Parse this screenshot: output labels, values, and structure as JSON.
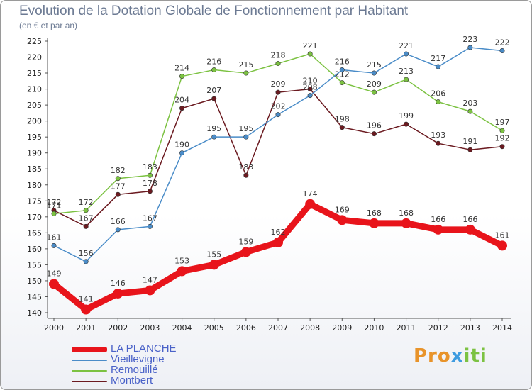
{
  "chart_data": {
    "type": "line",
    "title": "Evolution de la Dotation Globale de Fonctionnement par Habitant",
    "subtitle": "(en € et par an)",
    "x": [
      "2000",
      "2001",
      "2002",
      "2003",
      "2004",
      "2005",
      "2006",
      "2007",
      "2008",
      "2009",
      "2010",
      "2011",
      "2012",
      "2013",
      "2014"
    ],
    "ylim": [
      140,
      225
    ],
    "yticks": [
      140,
      145,
      150,
      155,
      160,
      165,
      170,
      175,
      180,
      185,
      190,
      195,
      200,
      205,
      210,
      215,
      220,
      225
    ],
    "grid": false,
    "legend_position": "bottom-left",
    "series": [
      {
        "name": "LA PLANCHE",
        "color": "#e8141b",
        "values": [
          149,
          141,
          146,
          147,
          153,
          155,
          159,
          162,
          174,
          169,
          168,
          168,
          166,
          166,
          161
        ]
      },
      {
        "name": "Vieillevigne",
        "color": "#4a8cc8",
        "values": [
          161,
          156,
          166,
          167,
          190,
          195,
          195,
          202,
          208,
          216,
          215,
          221,
          217,
          223,
          222
        ]
      },
      {
        "name": "Remouillé",
        "color": "#7cc242",
        "values": [
          171,
          172,
          182,
          183,
          214,
          216,
          215,
          218,
          221,
          212,
          209,
          213,
          206,
          203,
          197
        ]
      },
      {
        "name": "Montbert",
        "color": "#6b1a20",
        "values": [
          172,
          167,
          177,
          178,
          204,
          207,
          183,
          209,
          210,
          198,
          196,
          199,
          193,
          191,
          192
        ]
      }
    ]
  },
  "logo": {
    "part1": "Pro",
    "part2": "x",
    "part3": "iti"
  }
}
